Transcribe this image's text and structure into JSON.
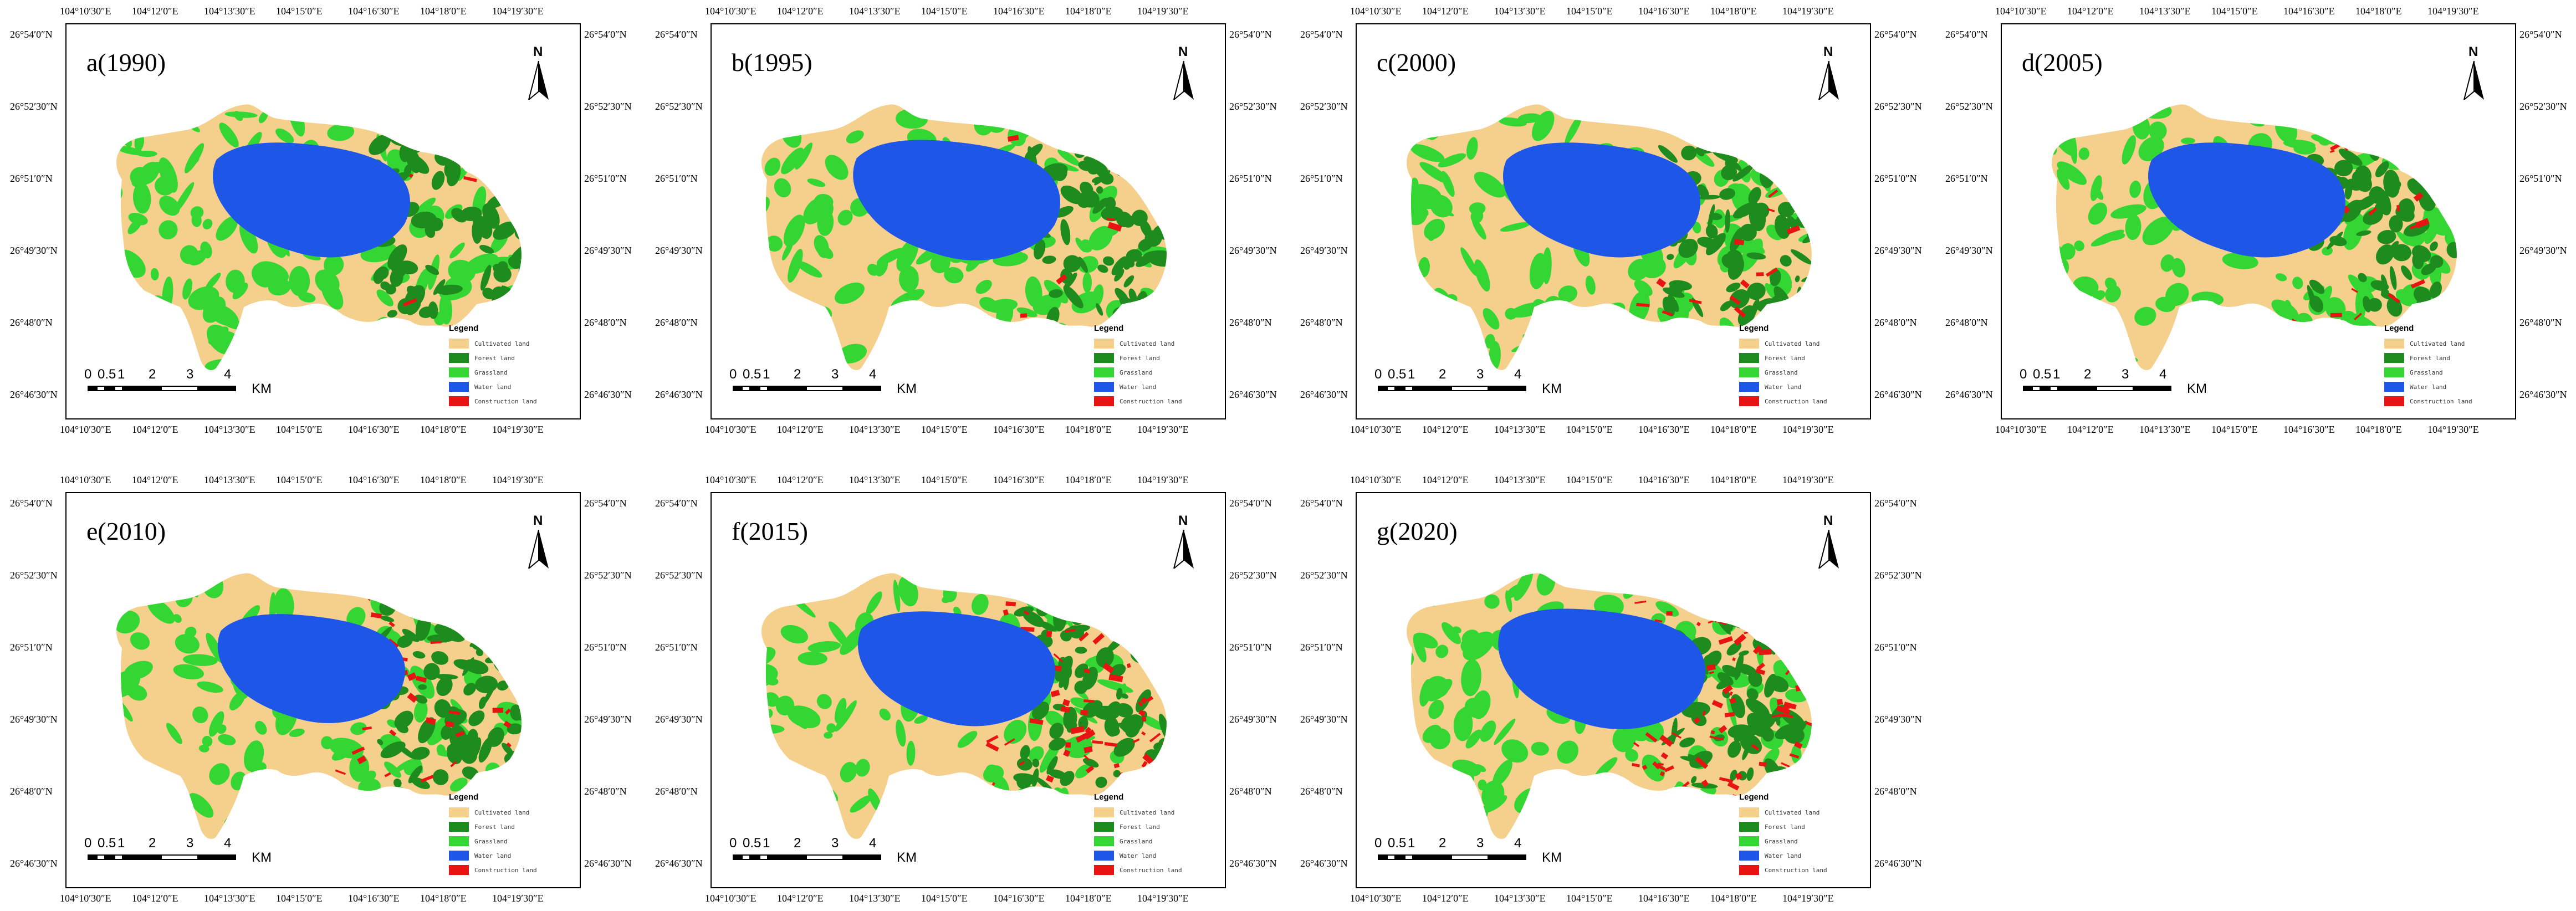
{
  "panels": [
    {
      "id": "a",
      "title": "a(1990)",
      "construction": 0.05,
      "water": 1.0
    },
    {
      "id": "b",
      "title": "b(1995)",
      "construction": 0.03,
      "water": 1.05
    },
    {
      "id": "c",
      "title": "c(2000)",
      "construction": 0.15,
      "water": 1.0
    },
    {
      "id": "d",
      "title": "d(2005)",
      "construction": 0.18,
      "water": 1.0
    },
    {
      "id": "e",
      "title": "e(2010)",
      "construction": 0.25,
      "water": 0.95
    },
    {
      "id": "f",
      "title": "f(2015)",
      "construction": 0.55,
      "water": 1.0
    },
    {
      "id": "g",
      "title": "g(2020)",
      "construction": 0.65,
      "water": 1.05
    }
  ],
  "axes": {
    "top_ticks": [
      "104°10′30″E",
      "104°12′0″E",
      "104°13′30″E",
      "104°15′0″E",
      "104°16′30″E",
      "104°18′0″E",
      "104°19′30″E"
    ],
    "bottom_ticks": [
      "104°10′30″E",
      "104°12′0″E",
      "104°13′30″E",
      "104°15′0″E",
      "104°16′30″E",
      "104°18′0″E",
      "104°19′30″E"
    ],
    "side_ticks": [
      "26°54′0″N",
      "26°52′30″N",
      "26°51′0″N",
      "26°49′30″N",
      "26°48′0″N",
      "26°46′30″N"
    ]
  },
  "north_arrow_label": "N",
  "legend": {
    "title": "Legend",
    "items": [
      {
        "label": "Cultivated land",
        "color": "#F5CF8C"
      },
      {
        "label": "Forest land",
        "color": "#1E8B1E"
      },
      {
        "label": "Grassland",
        "color": "#33D633"
      },
      {
        "label": "Water land",
        "color": "#1E56E8"
      },
      {
        "label": "Construction land",
        "color": "#E81414"
      }
    ]
  },
  "scalebar": {
    "labels": [
      "0",
      "0.5",
      "1",
      "2",
      "3",
      "4"
    ],
    "unit": "KM"
  }
}
